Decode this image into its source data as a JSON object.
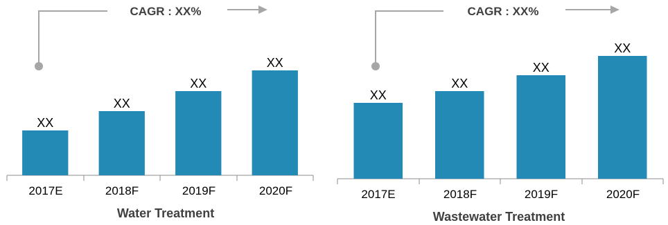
{
  "colors": {
    "bar": "#2389b5",
    "connector": "#a6a6a6",
    "axis": "#8c8c8c",
    "title_text": "#404040"
  },
  "chart_data": [
    {
      "type": "bar",
      "title": "Water Treatment",
      "cagr_label": "CAGR : XX%",
      "categories": [
        "2017E",
        "2018F",
        "2019F",
        "2020F"
      ],
      "values": [
        65,
        93,
        122,
        152
      ],
      "data_labels": [
        "XX",
        "XX",
        "XX",
        "XX"
      ],
      "ylim": [
        0,
        170
      ],
      "grid": false,
      "y_axis_visible": false
    },
    {
      "type": "bar",
      "title": "Wastewater Treatment",
      "cagr_label": "CAGR : XX%",
      "categories": [
        "2017E",
        "2018F",
        "2019F",
        "2020F"
      ],
      "values": [
        110,
        127,
        150,
        178
      ],
      "data_labels": [
        "XX",
        "XX",
        "XX",
        "XX"
      ],
      "ylim": [
        0,
        200
      ],
      "grid": false,
      "y_axis_visible": false
    }
  ]
}
